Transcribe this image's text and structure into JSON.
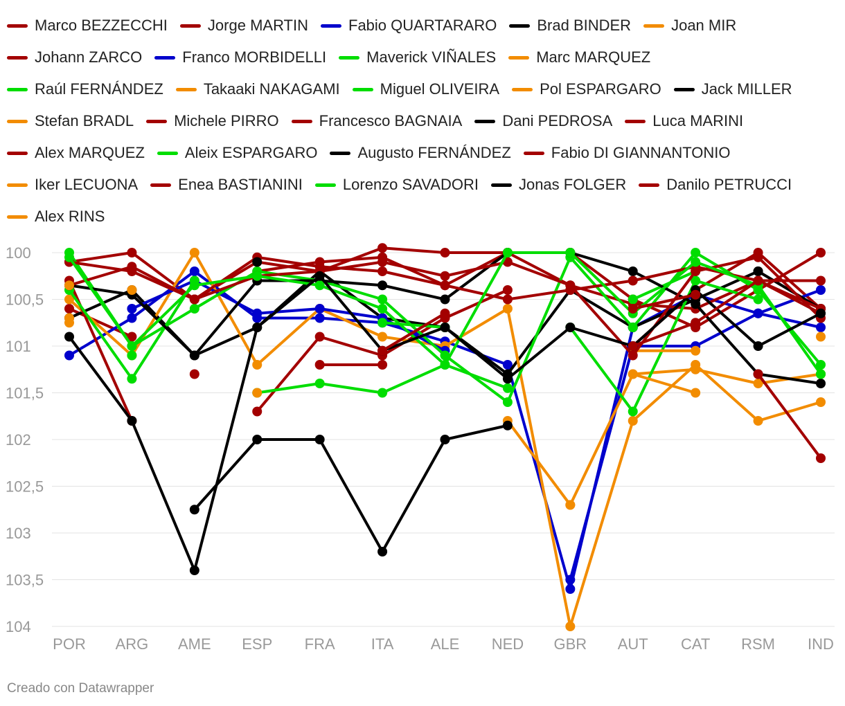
{
  "chart_data": {
    "type": "line",
    "title": "",
    "xlabel": "",
    "ylabel": "",
    "ylim": [
      100,
      104
    ],
    "y_reversed": true,
    "y_ticks": [
      100,
      100.5,
      101,
      101.5,
      102,
      102.5,
      103,
      103.5,
      104
    ],
    "y_tick_labels": [
      "100",
      "100,5",
      "101",
      "101,5",
      "102",
      "102,5",
      "103",
      "103,5",
      "104"
    ],
    "categories": [
      "POR",
      "ARG",
      "AME",
      "ESP",
      "FRA",
      "ITA",
      "ALE",
      "NED",
      "GBR",
      "AUT",
      "CAT",
      "RSM",
      "IND"
    ],
    "legend_rows": [
      [
        "Marco BEZZECCHI",
        "Jorge MARTIN",
        "Fabio QUARTARARO",
        "Brad BINDER",
        "Joan MIR"
      ],
      [
        "Johann ZARCO",
        "Franco MORBIDELLI",
        "Maverick VIÑALES",
        "Marc MARQUEZ"
      ],
      [
        "Raúl FERNÁNDEZ",
        "Takaaki NAKAGAMI",
        "Miguel OLIVEIRA",
        "Pol ESPARGARO",
        "Jack MILLER"
      ],
      [
        "Stefan BRADL",
        "Michele PIRRO",
        "Francesco BAGNAIA",
        "Dani PEDROSA",
        "Luca MARINI"
      ],
      [
        "Alex MARQUEZ",
        "Aleix ESPARGARO",
        "Augusto FERNÁNDEZ",
        "Fabio DI GIANNANTONIO"
      ],
      [
        "Iker LECUONA",
        "Enea BASTIANINI",
        "Lorenzo SAVADORI",
        "Jonas FOLGER",
        "Danilo PETRUCCI"
      ],
      [
        "Alex RINS"
      ]
    ],
    "series": [
      {
        "name": "Marco BEZZECCHI",
        "color": "#a30000",
        "values": [
          100.1,
          100,
          100.5,
          100.1,
          100.2,
          99.95,
          100,
          100,
          100,
          100.5,
          100.8,
          100.4,
          100
        ]
      },
      {
        "name": "Jorge MARTIN",
        "color": "#a30000",
        "values": [
          100.6,
          100.9,
          null,
          101.7,
          100.9,
          101.1,
          100.7,
          100.4,
          null,
          101,
          100.4,
          100,
          100.6
        ]
      },
      {
        "name": "Fabio QUARTARARO",
        "color": "#0000cc",
        "values": [
          101.1,
          100.7,
          100.2,
          100.7,
          100.7,
          100.75,
          100.95,
          101.2,
          103.6,
          100.8,
          100.45,
          100.65,
          100.4
        ]
      },
      {
        "name": "Brad BINDER",
        "color": "#000000",
        "values": [
          100.7,
          100.4,
          101.1,
          100.8,
          100.2,
          100.7,
          100.8,
          101.3,
          100.4,
          100.8,
          100.5,
          100.2,
          100.6
        ]
      },
      {
        "name": "Joan MIR",
        "color": "#f28c00",
        "values": [
          100.5,
          101.1,
          100,
          101.2,
          100.6,
          100.9,
          101,
          100.6,
          104,
          101.8,
          101.2,
          101.8,
          101.6
        ]
      },
      {
        "name": "Johann ZARCO",
        "color": "#a30000",
        "values": [
          100.3,
          101.8,
          null,
          100.2,
          100.1,
          100.05,
          100.35,
          100,
          100.35,
          100.55,
          100.6,
          100.3,
          100.65
        ]
      },
      {
        "name": "Franco MORBIDELLI",
        "color": "#0000cc",
        "values": [
          null,
          100.6,
          100.3,
          100.65,
          100.6,
          100.7,
          101.05,
          null,
          103.5,
          101,
          101,
          100.65,
          100.8
        ]
      },
      {
        "name": "Maverick VIÑALES",
        "color": "#00dd00",
        "values": [
          100,
          101,
          100.6,
          100.2,
          100.3,
          100.5,
          101.1,
          101.6,
          100.05,
          100.8,
          100,
          100.4,
          101.2
        ]
      },
      {
        "name": "Marc MARQUEZ",
        "color": "#f28c00",
        "values": [
          100.7,
          null,
          null,
          null,
          null,
          null,
          null,
          null,
          null,
          null,
          null,
          null,
          null
        ]
      },
      {
        "name": "Raúl FERNÁNDEZ",
        "color": "#00dd00",
        "values": [
          null,
          101.1,
          null,
          101.5,
          101.4,
          101.5,
          101.2,
          101.45,
          null,
          100.5,
          100.2,
          null,
          101.3
        ]
      },
      {
        "name": "Takaaki NAKAGAMI",
        "color": "#f28c00",
        "values": [
          null,
          null,
          null,
          101.5,
          null,
          null,
          null,
          101.8,
          102.7,
          101.3,
          101.25,
          101.4,
          101.3
        ]
      },
      {
        "name": "Miguel OLIVEIRA",
        "color": "#00dd00",
        "values": [
          100.4,
          101.35,
          100.3,
          null,
          null,
          100.75,
          100.8,
          null,
          100.8,
          101.7,
          100.3,
          100.5,
          null
        ]
      },
      {
        "name": "Pol ESPARGARO",
        "color": "#f28c00",
        "values": [
          100.75,
          null,
          null,
          null,
          null,
          null,
          null,
          null,
          null,
          101.3,
          101.5,
          null,
          null
        ]
      },
      {
        "name": "Jack MILLER",
        "color": "#000000",
        "values": [
          100.35,
          100.45,
          101.1,
          100.3,
          100.3,
          100.35,
          100.5,
          100,
          100,
          100.2,
          100.55,
          101.3,
          101.4
        ]
      },
      {
        "name": "Stefan BRADL",
        "color": "#f28c00",
        "values": [
          null,
          null,
          null,
          null,
          null,
          null,
          null,
          null,
          null,
          101.05,
          101.05,
          null,
          null
        ]
      },
      {
        "name": "Michele PIRRO",
        "color": "#a30000",
        "values": [
          null,
          null,
          101.3,
          null,
          101.2,
          101.2,
          null,
          null,
          null,
          null,
          null,
          101.3,
          102.2
        ]
      },
      {
        "name": "Francesco BAGNAIA",
        "color": "#a30000",
        "values": [
          100.35,
          100.15,
          100.5,
          100.05,
          100.15,
          100.2,
          100.35,
          100.5,
          100.4,
          100.3,
          100.15,
          100.3,
          100.6
        ]
      },
      {
        "name": "Dani PEDROSA",
        "color": "#000000",
        "values": [
          null,
          null,
          null,
          100.1,
          null,
          null,
          null,
          null,
          null,
          null,
          null,
          100.2,
          null
        ]
      },
      {
        "name": "Luca MARINI",
        "color": "#a30000",
        "values": [
          100.1,
          100.2,
          100.5,
          100.25,
          100.2,
          100.1,
          100.25,
          100.1,
          100.35,
          101.1,
          100.2,
          100.05,
          100.7
        ]
      },
      {
        "name": "Alex MARQUEZ",
        "color": "#a30000",
        "values": [
          null,
          null,
          null,
          null,
          null,
          null,
          null,
          null,
          null,
          null,
          null,
          null,
          null
        ]
      },
      {
        "name": "Aleix ESPARGARO",
        "color": "#00dd00",
        "values": [
          100.05,
          101,
          100.35,
          100.25,
          100.35,
          100.6,
          101.2,
          100,
          100,
          100.65,
          100.1,
          100.35,
          101.3
        ]
      },
      {
        "name": "Augusto FERNÁNDEZ",
        "color": "#000000",
        "values": [
          100.9,
          101.8,
          103.4,
          100.8,
          100.25,
          101.05,
          100.8,
          101.35,
          100.8,
          101,
          100.4,
          101,
          100.65
        ]
      },
      {
        "name": "Fabio DI GIANNANTONIO",
        "color": "#a30000",
        "values": [
          null,
          null,
          null,
          null,
          null,
          101.05,
          100.65,
          null,
          null,
          101,
          100.75,
          100.3,
          100.3
        ]
      },
      {
        "name": "Iker LECUONA",
        "color": "#f28c00",
        "values": [
          null,
          100.4,
          null,
          null,
          null,
          null,
          null,
          null,
          null,
          null,
          null,
          null,
          100.9
        ]
      },
      {
        "name": "Enea BASTIANINI",
        "color": "#a30000",
        "values": [
          null,
          null,
          null,
          null,
          null,
          null,
          null,
          null,
          null,
          100.6,
          100.45,
          null,
          null
        ]
      },
      {
        "name": "Lorenzo SAVADORI",
        "color": "#00dd00",
        "values": [
          null,
          null,
          null,
          null,
          null,
          null,
          null,
          null,
          null,
          null,
          null,
          null,
          null
        ]
      },
      {
        "name": "Jonas FOLGER",
        "color": "#000000",
        "values": [
          null,
          null,
          102.75,
          102,
          102,
          103.2,
          102,
          101.85,
          null,
          null,
          null,
          null,
          null
        ]
      },
      {
        "name": "Danilo PETRUCCI",
        "color": "#a30000",
        "values": [
          null,
          null,
          null,
          null,
          null,
          null,
          null,
          null,
          null,
          null,
          null,
          null,
          null
        ]
      },
      {
        "name": "Alex RINS",
        "color": "#f28c00",
        "values": [
          100.35,
          null,
          null,
          null,
          null,
          null,
          null,
          null,
          102.7,
          null,
          null,
          null,
          null
        ]
      }
    ]
  },
  "footer": {
    "credit": "Creado con Datawrapper"
  }
}
